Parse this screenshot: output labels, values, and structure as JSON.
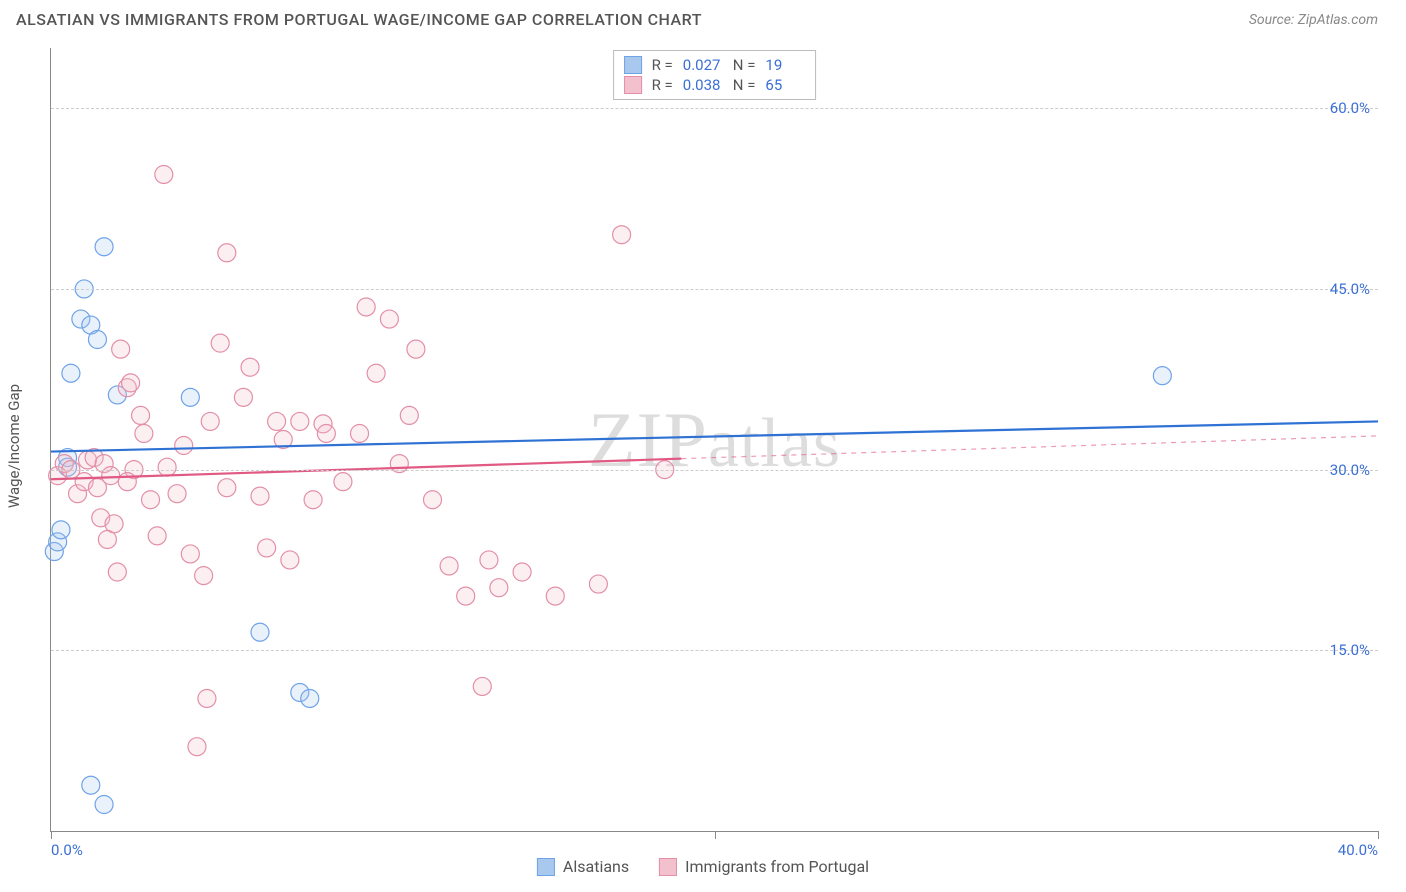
{
  "header": {
    "title": "ALSATIAN VS IMMIGRANTS FROM PORTUGAL WAGE/INCOME GAP CORRELATION CHART",
    "source": "Source: ZipAtlas.com"
  },
  "chart": {
    "type": "scatter",
    "watermark": "ZIPatlas",
    "yaxis_label": "Wage/Income Gap",
    "xlim": [
      0,
      40
    ],
    "ylim": [
      0,
      65
    ],
    "x_ticks": [
      0,
      20,
      40
    ],
    "x_tick_labels": [
      "0.0%",
      "",
      "40.0%"
    ],
    "y_gridlines": [
      15,
      30,
      45,
      60
    ],
    "y_tick_labels": [
      "15.0%",
      "30.0%",
      "45.0%",
      "60.0%"
    ],
    "background_color": "#ffffff",
    "grid_color": "#cccccc",
    "axis_color": "#888888",
    "tick_label_color": "#3b6fd6",
    "marker_radius": 9,
    "marker_stroke_width": 1.2,
    "marker_fill_opacity": 0.25,
    "trendline_width": 2.2,
    "series": [
      {
        "key": "alsatians",
        "label": "Alsatians",
        "color_stroke": "#6fa3e8",
        "color_fill": "#a8c8ee",
        "trendline_color": "#2f72d4",
        "R": "0.027",
        "N": "19",
        "trendline": {
          "y_at_x0": 31.5,
          "y_at_x40": 34.0,
          "x_data_max": 40
        },
        "points": [
          [
            0.1,
            23.2
          ],
          [
            0.2,
            24.0
          ],
          [
            0.3,
            25.0
          ],
          [
            0.5,
            31.0
          ],
          [
            0.5,
            30.2
          ],
          [
            0.6,
            38.0
          ],
          [
            0.9,
            42.5
          ],
          [
            1.2,
            42.0
          ],
          [
            1.0,
            45.0
          ],
          [
            1.4,
            40.8
          ],
          [
            1.6,
            48.5
          ],
          [
            1.2,
            3.8
          ],
          [
            1.6,
            2.2
          ],
          [
            2.0,
            36.2
          ],
          [
            4.2,
            36.0
          ],
          [
            6.3,
            16.5
          ],
          [
            7.5,
            11.5
          ],
          [
            7.8,
            11.0
          ],
          [
            33.5,
            37.8
          ]
        ]
      },
      {
        "key": "portugal",
        "label": "Immigrants from Portugal",
        "color_stroke": "#e38fa7",
        "color_fill": "#f3c0cd",
        "trendline_color": "#e05a84",
        "R": "0.038",
        "N": "65",
        "trendline": {
          "y_at_x0": 29.2,
          "y_at_x40": 32.8,
          "x_data_max": 19
        },
        "points": [
          [
            0.2,
            29.5
          ],
          [
            0.4,
            30.5
          ],
          [
            0.6,
            30.0
          ],
          [
            0.8,
            28.0
          ],
          [
            1.0,
            29.0
          ],
          [
            1.1,
            30.8
          ],
          [
            1.3,
            31.0
          ],
          [
            1.4,
            28.5
          ],
          [
            1.5,
            26.0
          ],
          [
            1.6,
            30.5
          ],
          [
            1.8,
            29.5
          ],
          [
            1.9,
            25.5
          ],
          [
            2.0,
            21.5
          ],
          [
            1.7,
            24.2
          ],
          [
            2.3,
            36.8
          ],
          [
            2.4,
            37.2
          ],
          [
            2.5,
            30.0
          ],
          [
            2.1,
            40.0
          ],
          [
            2.3,
            29.0
          ],
          [
            2.7,
            34.5
          ],
          [
            2.8,
            33.0
          ],
          [
            3.0,
            27.5
          ],
          [
            3.2,
            24.5
          ],
          [
            3.5,
            30.2
          ],
          [
            3.8,
            28.0
          ],
          [
            3.4,
            54.5
          ],
          [
            4.0,
            32.0
          ],
          [
            4.2,
            23.0
          ],
          [
            4.4,
            7.0
          ],
          [
            4.6,
            21.2
          ],
          [
            4.7,
            11.0
          ],
          [
            4.8,
            34.0
          ],
          [
            5.1,
            40.5
          ],
          [
            5.3,
            28.5
          ],
          [
            5.3,
            48.0
          ],
          [
            5.8,
            36.0
          ],
          [
            6.0,
            38.5
          ],
          [
            6.3,
            27.8
          ],
          [
            6.5,
            23.5
          ],
          [
            6.8,
            34.0
          ],
          [
            7.0,
            32.5
          ],
          [
            7.2,
            22.5
          ],
          [
            7.5,
            34.0
          ],
          [
            7.9,
            27.5
          ],
          [
            8.2,
            33.8
          ],
          [
            8.3,
            33.0
          ],
          [
            8.8,
            29.0
          ],
          [
            9.3,
            33.0
          ],
          [
            9.5,
            43.5
          ],
          [
            9.8,
            38.0
          ],
          [
            10.2,
            42.5
          ],
          [
            10.8,
            34.5
          ],
          [
            10.5,
            30.5
          ],
          [
            11.0,
            40.0
          ],
          [
            11.5,
            27.5
          ],
          [
            12.0,
            22.0
          ],
          [
            12.5,
            19.5
          ],
          [
            13.2,
            22.5
          ],
          [
            13.0,
            12.0
          ],
          [
            13.5,
            20.2
          ],
          [
            14.2,
            21.5
          ],
          [
            15.2,
            19.5
          ],
          [
            16.5,
            20.5
          ],
          [
            17.2,
            49.5
          ],
          [
            18.5,
            30.0
          ]
        ]
      }
    ]
  },
  "legend_top": {
    "R_label": "R =",
    "N_label": "N ="
  }
}
